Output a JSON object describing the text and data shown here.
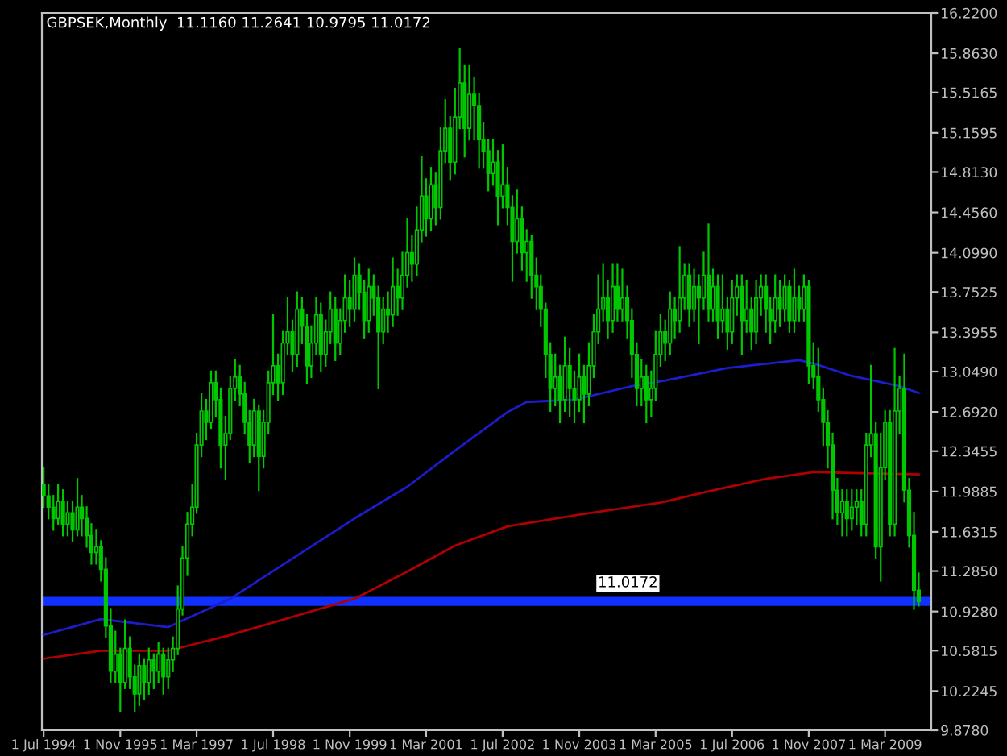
{
  "chart_data": {
    "type": "candlestick",
    "title": "GBPSEK,Monthly  11.1160 11.2641 10.9795 11.0172",
    "x": [
      "1994-07",
      "1994-08",
      "1994-09",
      "1994-10",
      "1994-11",
      "1994-12",
      "1995-01",
      "1995-02",
      "1995-03",
      "1995-04",
      "1995-05",
      "1995-06",
      "1995-07",
      "1995-08",
      "1995-09",
      "1995-10",
      "1995-11",
      "1995-12",
      "1996-01",
      "1996-02",
      "1996-03",
      "1996-04",
      "1996-05",
      "1996-06",
      "1996-07",
      "1996-08",
      "1996-09",
      "1996-10",
      "1996-11",
      "1996-12",
      "1997-01",
      "1997-02",
      "1997-03",
      "1997-04",
      "1997-05",
      "1997-06",
      "1997-07",
      "1997-08",
      "1997-09",
      "1997-10",
      "1997-11",
      "1997-12",
      "1998-01",
      "1998-02",
      "1998-03",
      "1998-04",
      "1998-05",
      "1998-06",
      "1998-07",
      "1998-08",
      "1998-09",
      "1998-10",
      "1998-11",
      "1998-12",
      "1999-01",
      "1999-02",
      "1999-03",
      "1999-04",
      "1999-05",
      "1999-06",
      "1999-07",
      "1999-08",
      "1999-09",
      "1999-10",
      "1999-11",
      "1999-12",
      "2000-01",
      "2000-02",
      "2000-03",
      "2000-04",
      "2000-05",
      "2000-06",
      "2000-07",
      "2000-08",
      "2000-09",
      "2000-10",
      "2000-11",
      "2000-12",
      "2001-01",
      "2001-02",
      "2001-03",
      "2001-04",
      "2001-05",
      "2001-06",
      "2001-07",
      "2001-08",
      "2001-09",
      "2001-10",
      "2001-11",
      "2001-12",
      "2002-01",
      "2002-02",
      "2002-03",
      "2002-04",
      "2002-05",
      "2002-06",
      "2002-07",
      "2002-08",
      "2002-09",
      "2002-10",
      "2002-11",
      "2002-12",
      "2003-01",
      "2003-02",
      "2003-03",
      "2003-04",
      "2003-05",
      "2003-06",
      "2003-07",
      "2003-08",
      "2003-09",
      "2003-10",
      "2003-11",
      "2003-12",
      "2004-01",
      "2004-02",
      "2004-03",
      "2004-04",
      "2004-05",
      "2004-06",
      "2004-07",
      "2004-08",
      "2004-09",
      "2004-10",
      "2004-11",
      "2004-12",
      "2005-01",
      "2005-02",
      "2005-03",
      "2005-04",
      "2005-05",
      "2005-06",
      "2005-07",
      "2005-08",
      "2005-09",
      "2005-10",
      "2005-11",
      "2005-12",
      "2006-01",
      "2006-02",
      "2006-03",
      "2006-04",
      "2006-05",
      "2006-06",
      "2006-07",
      "2006-08",
      "2006-09",
      "2006-10",
      "2006-11",
      "2006-12",
      "2007-01",
      "2007-02",
      "2007-03",
      "2007-04",
      "2007-05",
      "2007-06",
      "2007-07",
      "2007-08",
      "2007-09",
      "2007-10",
      "2007-11",
      "2007-12",
      "2008-01",
      "2008-02",
      "2008-03",
      "2008-04",
      "2008-05",
      "2008-06",
      "2008-07",
      "2008-08",
      "2008-09",
      "2008-10",
      "2008-11",
      "2008-12",
      "2009-01",
      "2009-02",
      "2009-03",
      "2009-04",
      "2009-05",
      "2009-06",
      "2009-07",
      "2009-08",
      "2009-09",
      "2009-10"
    ],
    "ohlc": [
      [
        12.05,
        12.2,
        11.85,
        11.95
      ],
      [
        11.95,
        12.05,
        11.75,
        11.85
      ],
      [
        11.85,
        11.95,
        11.65,
        11.75
      ],
      [
        11.75,
        12.05,
        11.7,
        11.9
      ],
      [
        11.9,
        12.0,
        11.6,
        11.7
      ],
      [
        11.7,
        11.9,
        11.6,
        11.8
      ],
      [
        11.8,
        11.9,
        11.55,
        11.65
      ],
      [
        11.65,
        12.1,
        11.6,
        11.85
      ],
      [
        11.85,
        11.95,
        11.6,
        11.75
      ],
      [
        11.75,
        11.85,
        11.5,
        11.6
      ],
      [
        11.6,
        11.7,
        11.35,
        11.45
      ],
      [
        11.45,
        11.65,
        11.35,
        11.5
      ],
      [
        11.5,
        11.55,
        11.2,
        11.3
      ],
      [
        11.3,
        11.4,
        10.7,
        10.8
      ],
      [
        10.8,
        10.95,
        10.3,
        10.4
      ],
      [
        10.4,
        10.75,
        10.3,
        10.55
      ],
      [
        10.55,
        10.6,
        10.05,
        10.3
      ],
      [
        10.3,
        10.85,
        10.25,
        10.6
      ],
      [
        10.6,
        10.7,
        10.25,
        10.35
      ],
      [
        10.35,
        10.45,
        10.05,
        10.2
      ],
      [
        10.2,
        10.55,
        10.1,
        10.45
      ],
      [
        10.45,
        10.5,
        10.15,
        10.3
      ],
      [
        10.3,
        10.6,
        10.2,
        10.5
      ],
      [
        10.5,
        10.55,
        10.25,
        10.4
      ],
      [
        10.4,
        10.65,
        10.3,
        10.55
      ],
      [
        10.55,
        10.6,
        10.2,
        10.35
      ],
      [
        10.35,
        10.6,
        10.25,
        10.5
      ],
      [
        10.5,
        10.7,
        10.4,
        10.6
      ],
      [
        10.6,
        11.15,
        10.55,
        10.95
      ],
      [
        10.95,
        11.5,
        10.9,
        11.4
      ],
      [
        11.4,
        11.8,
        11.25,
        11.7
      ],
      [
        11.7,
        12.05,
        11.6,
        11.85
      ],
      [
        11.85,
        12.5,
        11.8,
        12.4
      ],
      [
        12.4,
        12.85,
        12.3,
        12.7
      ],
      [
        12.7,
        12.8,
        12.45,
        12.6
      ],
      [
        12.6,
        13.05,
        12.55,
        12.95
      ],
      [
        12.95,
        13.05,
        12.65,
        12.8
      ],
      [
        12.8,
        12.9,
        12.2,
        12.4
      ],
      [
        12.4,
        12.65,
        12.1,
        12.5
      ],
      [
        12.5,
        13.0,
        12.45,
        12.9
      ],
      [
        12.9,
        13.15,
        12.8,
        13.0
      ],
      [
        13.0,
        13.1,
        12.75,
        12.85
      ],
      [
        12.85,
        12.95,
        12.5,
        12.6
      ],
      [
        12.6,
        12.7,
        12.25,
        12.4
      ],
      [
        12.4,
        12.8,
        12.3,
        12.7
      ],
      [
        12.7,
        12.75,
        12.0,
        12.3
      ],
      [
        12.3,
        12.7,
        12.2,
        12.6
      ],
      [
        12.6,
        13.05,
        12.5,
        12.95
      ],
      [
        12.95,
        13.55,
        12.85,
        13.1
      ],
      [
        13.1,
        13.2,
        12.8,
        12.95
      ],
      [
        12.95,
        13.4,
        12.85,
        13.3
      ],
      [
        13.3,
        13.7,
        13.2,
        13.4
      ],
      [
        13.4,
        13.5,
        13.05,
        13.2
      ],
      [
        13.2,
        13.75,
        13.1,
        13.6
      ],
      [
        13.6,
        13.7,
        13.3,
        13.45
      ],
      [
        13.45,
        13.55,
        12.95,
        13.1
      ],
      [
        13.1,
        13.45,
        13.0,
        13.3
      ],
      [
        13.3,
        13.7,
        13.2,
        13.55
      ],
      [
        13.55,
        13.65,
        13.05,
        13.2
      ],
      [
        13.2,
        13.5,
        13.1,
        13.4
      ],
      [
        13.4,
        13.75,
        13.3,
        13.6
      ],
      [
        13.6,
        13.7,
        13.15,
        13.3
      ],
      [
        13.3,
        13.6,
        13.2,
        13.5
      ],
      [
        13.5,
        13.9,
        13.4,
        13.7
      ],
      [
        13.7,
        13.85,
        13.45,
        13.6
      ],
      [
        13.6,
        14.05,
        13.5,
        13.9
      ],
      [
        13.9,
        14.0,
        13.6,
        13.75
      ],
      [
        13.75,
        13.85,
        13.35,
        13.5
      ],
      [
        13.5,
        13.95,
        13.4,
        13.8
      ],
      [
        13.8,
        13.9,
        13.55,
        13.7
      ],
      [
        13.7,
        13.8,
        12.9,
        13.4
      ],
      [
        13.4,
        13.7,
        13.3,
        13.6
      ],
      [
        13.6,
        13.75,
        13.4,
        13.55
      ],
      [
        13.55,
        14.05,
        13.45,
        13.8
      ],
      [
        13.8,
        13.95,
        13.55,
        13.7
      ],
      [
        13.7,
        14.1,
        13.6,
        13.9
      ],
      [
        13.9,
        14.4,
        13.8,
        14.1
      ],
      [
        14.1,
        14.25,
        13.85,
        14.0
      ],
      [
        14.0,
        14.5,
        13.9,
        14.3
      ],
      [
        14.3,
        14.95,
        14.2,
        14.6
      ],
      [
        14.6,
        14.75,
        14.25,
        14.4
      ],
      [
        14.4,
        14.85,
        14.3,
        14.7
      ],
      [
        14.7,
        14.8,
        14.35,
        14.5
      ],
      [
        14.5,
        15.2,
        14.4,
        15.0
      ],
      [
        15.0,
        15.45,
        14.9,
        15.2
      ],
      [
        15.2,
        15.3,
        14.75,
        14.9
      ],
      [
        14.9,
        15.55,
        14.8,
        15.3
      ],
      [
        15.3,
        15.9,
        15.2,
        15.6
      ],
      [
        15.6,
        15.75,
        14.95,
        15.2
      ],
      [
        15.2,
        15.75,
        15.1,
        15.5
      ],
      [
        15.5,
        15.65,
        15.1,
        15.4
      ],
      [
        15.4,
        15.5,
        14.85,
        15.1
      ],
      [
        15.1,
        15.25,
        14.85,
        15.0
      ],
      [
        15.0,
        15.1,
        14.65,
        14.8
      ],
      [
        14.8,
        15.1,
        14.7,
        14.9
      ],
      [
        14.9,
        15.0,
        14.35,
        14.6
      ],
      [
        14.6,
        15.05,
        14.5,
        14.7
      ],
      [
        14.7,
        14.85,
        14.35,
        14.5
      ],
      [
        14.5,
        14.6,
        13.85,
        14.2
      ],
      [
        14.2,
        14.65,
        14.1,
        14.4
      ],
      [
        14.4,
        14.5,
        13.95,
        14.1
      ],
      [
        14.1,
        14.3,
        13.85,
        14.2
      ],
      [
        14.2,
        14.25,
        13.7,
        13.9
      ],
      [
        13.9,
        14.05,
        13.6,
        13.8
      ],
      [
        13.8,
        13.9,
        13.45,
        13.6
      ],
      [
        13.6,
        13.65,
        13.0,
        13.2
      ],
      [
        13.2,
        13.3,
        12.7,
        12.9
      ],
      [
        12.9,
        13.2,
        12.75,
        13.0
      ],
      [
        13.0,
        13.1,
        12.6,
        12.8
      ],
      [
        12.8,
        13.35,
        12.7,
        13.1
      ],
      [
        13.1,
        13.25,
        12.65,
        12.9
      ],
      [
        12.9,
        13.05,
        12.6,
        12.8
      ],
      [
        12.8,
        13.2,
        12.7,
        13.0
      ],
      [
        13.0,
        13.1,
        12.6,
        12.85
      ],
      [
        12.85,
        13.3,
        12.75,
        13.1
      ],
      [
        13.1,
        13.55,
        13.0,
        13.4
      ],
      [
        13.4,
        13.9,
        13.3,
        13.6
      ],
      [
        13.6,
        14.0,
        13.5,
        13.7
      ],
      [
        13.7,
        13.85,
        13.35,
        13.5
      ],
      [
        13.5,
        14.0,
        13.4,
        13.8
      ],
      [
        13.8,
        14.0,
        13.5,
        13.6
      ],
      [
        13.6,
        13.95,
        13.5,
        13.7
      ],
      [
        13.7,
        13.8,
        13.35,
        13.5
      ],
      [
        13.5,
        13.6,
        13.0,
        13.2
      ],
      [
        13.2,
        13.3,
        12.75,
        12.9
      ],
      [
        12.9,
        13.15,
        12.75,
        13.0
      ],
      [
        13.0,
        13.1,
        12.6,
        12.8
      ],
      [
        12.8,
        13.05,
        12.65,
        12.9
      ],
      [
        12.9,
        13.4,
        12.8,
        13.2
      ],
      [
        13.2,
        13.55,
        13.1,
        13.4
      ],
      [
        13.4,
        13.5,
        13.15,
        13.3
      ],
      [
        13.3,
        13.75,
        13.2,
        13.6
      ],
      [
        13.6,
        13.7,
        13.35,
        13.5
      ],
      [
        13.5,
        14.15,
        13.4,
        13.7
      ],
      [
        13.7,
        14.0,
        13.6,
        13.9
      ],
      [
        13.9,
        14.0,
        13.45,
        13.6
      ],
      [
        13.6,
        13.95,
        13.5,
        13.8
      ],
      [
        13.8,
        13.9,
        13.3,
        13.7
      ],
      [
        13.7,
        14.1,
        13.6,
        13.9
      ],
      [
        13.9,
        14.35,
        13.5,
        13.6
      ],
      [
        13.6,
        13.95,
        13.5,
        13.8
      ],
      [
        13.8,
        13.9,
        13.35,
        13.5
      ],
      [
        13.5,
        13.9,
        13.4,
        13.6
      ],
      [
        13.6,
        13.7,
        13.25,
        13.4
      ],
      [
        13.4,
        13.85,
        13.3,
        13.7
      ],
      [
        13.7,
        13.9,
        13.55,
        13.8
      ],
      [
        13.8,
        13.9,
        13.2,
        13.5
      ],
      [
        13.5,
        13.85,
        13.4,
        13.6
      ],
      [
        13.6,
        13.7,
        13.25,
        13.4
      ],
      [
        13.4,
        13.85,
        13.3,
        13.7
      ],
      [
        13.7,
        13.9,
        13.55,
        13.8
      ],
      [
        13.8,
        13.9,
        13.4,
        13.6
      ],
      [
        13.6,
        13.7,
        13.3,
        13.5
      ],
      [
        13.5,
        13.9,
        13.4,
        13.7
      ],
      [
        13.7,
        13.85,
        13.45,
        13.6
      ],
      [
        13.6,
        13.9,
        13.5,
        13.8
      ],
      [
        13.8,
        13.85,
        13.4,
        13.5
      ],
      [
        13.5,
        13.95,
        13.4,
        13.7
      ],
      [
        13.7,
        13.8,
        13.5,
        13.6
      ],
      [
        13.6,
        13.9,
        13.5,
        13.8
      ],
      [
        13.8,
        13.85,
        12.95,
        13.1
      ],
      [
        13.1,
        13.3,
        12.9,
        13.0
      ],
      [
        13.0,
        13.25,
        12.7,
        12.8
      ],
      [
        12.8,
        12.9,
        12.4,
        12.6
      ],
      [
        12.6,
        12.7,
        12.2,
        12.4
      ],
      [
        12.4,
        12.5,
        11.75,
        12.0
      ],
      [
        12.0,
        12.1,
        11.7,
        11.8
      ],
      [
        11.8,
        12.0,
        11.6,
        11.9
      ],
      [
        11.9,
        12.0,
        11.6,
        11.75
      ],
      [
        11.75,
        12.0,
        11.65,
        11.85
      ],
      [
        11.85,
        12.0,
        11.7,
        11.9
      ],
      [
        11.9,
        12.0,
        11.6,
        11.7
      ],
      [
        11.7,
        12.5,
        11.6,
        12.4
      ],
      [
        12.4,
        13.1,
        12.3,
        12.5
      ],
      [
        12.5,
        12.6,
        11.4,
        11.5
      ],
      [
        11.5,
        12.5,
        11.2,
        12.2
      ],
      [
        12.2,
        12.7,
        12.1,
        12.6
      ],
      [
        12.6,
        12.7,
        11.6,
        11.7
      ],
      [
        11.7,
        13.25,
        11.6,
        12.7
      ],
      [
        12.7,
        13.0,
        12.5,
        12.9
      ],
      [
        12.9,
        13.2,
        11.9,
        12.0
      ],
      [
        12.0,
        12.1,
        11.5,
        11.6
      ],
      [
        11.6,
        11.8,
        10.95,
        11.116
      ],
      [
        11.116,
        11.2641,
        10.9795,
        11.0172
      ]
    ],
    "color": "#00c800",
    "series": [
      {
        "type": "line",
        "color": "#1c1ccc",
        "x": [
          "1994-07",
          "1995-07",
          "1996-09",
          "1997-10",
          "1999-12",
          "2000-11",
          "2001-09",
          "2002-08",
          "2002-12",
          "2003-10",
          "2004-10",
          "2005-05",
          "2006-06",
          "2007-09",
          "2007-12",
          "2008-08",
          "2009-06",
          "2009-10"
        ],
        "values": [
          10.72,
          10.86,
          10.79,
          11.04,
          11.75,
          12.03,
          12.35,
          12.69,
          12.78,
          12.8,
          12.92,
          12.97,
          13.08,
          13.15,
          13.12,
          13.01,
          12.92,
          12.86
        ]
      },
      {
        "type": "line",
        "color": "#b00000",
        "x": [
          "1994-07",
          "1995-07",
          "1996-09",
          "1997-10",
          "1999-12",
          "2000-11",
          "2001-09",
          "2002-08",
          "2003-12",
          "2005-04",
          "2006-02",
          "2007-02",
          "2007-12",
          "2008-10",
          "2009-10"
        ],
        "values": [
          10.51,
          10.58,
          10.58,
          10.72,
          11.04,
          11.28,
          11.51,
          11.68,
          11.79,
          11.89,
          11.99,
          12.1,
          12.16,
          12.15,
          12.14
        ]
      }
    ],
    "ref_lines": [
      {
        "axis": "y",
        "value": 11.0172,
        "label": "11.0172",
        "color": "#1030ff"
      }
    ],
    "xlim": [
      "1994-06-20",
      "2009-12-20"
    ],
    "xticks": [
      {
        "value": "1994-07",
        "label": "1 Jul 1994"
      },
      {
        "value": "1995-11",
        "label": "1 Nov 1995"
      },
      {
        "value": "1997-03",
        "label": "1 Mar 1997"
      },
      {
        "value": "1998-07",
        "label": "1 Jul 1998"
      },
      {
        "value": "1999-11",
        "label": "1 Nov 1999"
      },
      {
        "value": "2001-03",
        "label": "1 Mar 2001"
      },
      {
        "value": "2002-07",
        "label": "1 Jul 2002"
      },
      {
        "value": "2003-11",
        "label": "1 Nov 2003"
      },
      {
        "value": "2005-03",
        "label": "1 Mar 2005"
      },
      {
        "value": "2006-07",
        "label": "1 Jul 2006"
      },
      {
        "value": "2007-11",
        "label": "1 Nov 2007"
      },
      {
        "value": "2009-03",
        "label": "1 Mar 2009"
      }
    ],
    "ylim": [
      9.878,
      16.22
    ],
    "yticks": [
      {
        "value": 9.878,
        "label": "9.8780"
      },
      {
        "value": 10.2245,
        "label": "10.2245"
      },
      {
        "value": 10.5815,
        "label": "10.5815"
      },
      {
        "value": 10.928,
        "label": "10.9280"
      },
      {
        "value": 11.285,
        "label": "11.2850"
      },
      {
        "value": 11.6315,
        "label": "11.6315"
      },
      {
        "value": 11.9885,
        "label": "11.9885"
      },
      {
        "value": 12.3455,
        "label": "12.3455"
      },
      {
        "value": 12.692,
        "label": "12.6920"
      },
      {
        "value": 13.049,
        "label": "13.0490"
      },
      {
        "value": 13.3955,
        "label": "13.3955"
      },
      {
        "value": 13.7525,
        "label": "13.7525"
      },
      {
        "value": 14.099,
        "label": "14.0990"
      },
      {
        "value": 14.456,
        "label": "14.4560"
      },
      {
        "value": 14.813,
        "label": "14.8130"
      },
      {
        "value": 15.1595,
        "label": "15.1595"
      },
      {
        "value": 15.5165,
        "label": "15.5165"
      },
      {
        "value": 15.863,
        "label": "15.8630"
      },
      {
        "value": 16.22,
        "label": "16.2200"
      }
    ],
    "grid": false,
    "legend": false
  }
}
